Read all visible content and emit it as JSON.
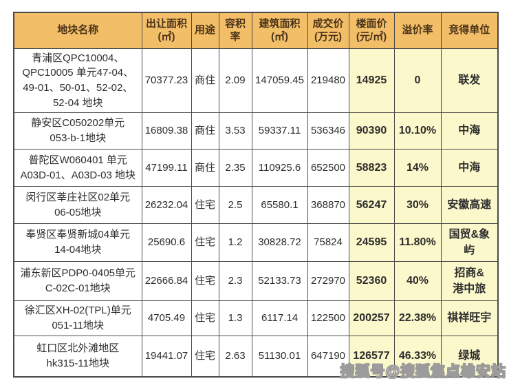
{
  "watermark": "搜狐号@搜狐焦点雄安站",
  "colors": {
    "header_bg": "#f3be68",
    "highlight_bg": "#fbf8cb",
    "border": "#4a4a4a",
    "header_text": "#4a3318",
    "body_text": "#2d2d2d",
    "watermark_fill": "#fbfbfb",
    "watermark_outline": "#9b9b9b"
  },
  "chart_data": {
    "type": "table",
    "title": "",
    "columns": [
      {
        "key": "parcel-name",
        "label": "地块名称"
      },
      {
        "key": "transfer-area",
        "label": "出让面积\n(㎡)"
      },
      {
        "key": "usage",
        "label": "用途"
      },
      {
        "key": "plot-ratio",
        "label": "容积率"
      },
      {
        "key": "building-area",
        "label": "建筑面积\n(㎡)"
      },
      {
        "key": "transaction-price",
        "label": "成交价\n(万元)"
      },
      {
        "key": "floor-price",
        "label": "楼面价\n(元/㎡)"
      },
      {
        "key": "premium-rate",
        "label": "溢价率"
      },
      {
        "key": "winning-bidder",
        "label": "竞得单位"
      }
    ],
    "highlight_column_keys": [
      "floor-price",
      "premium-rate",
      "winning-bidder"
    ],
    "rows": [
      [
        "青浦区QPC10004、\nQPC10005 单元47-04、\n49-01、50-01、52-02、\n52-04 地块",
        "70377.23",
        "商住",
        "2.09",
        "147059.45",
        "219480",
        "14925",
        "0",
        "联发"
      ],
      [
        "静安区C050202单元\n053-b-1地块",
        "16809.38",
        "商住",
        "3.53",
        "59337.11",
        "536346",
        "90390",
        "10.10%",
        "中海"
      ],
      [
        "普陀区W060401 单元\nA03D-01、A03D-03 地块",
        "47199.11",
        "商住",
        "2.35",
        "110925.6",
        "652500",
        "58823",
        "14%",
        "中海"
      ],
      [
        "闵行区莘庄社区02单元\n06-05地块",
        "26232.04",
        "住宅",
        "2.5",
        "65580.1",
        "368870",
        "56247",
        "30%",
        "安徽高速"
      ],
      [
        "奉贤区奉贤新城04单元\n14-04地块",
        "25690.6",
        "住宅",
        "1.2",
        "30828.72",
        "75824",
        "24595",
        "11.80%",
        "国贸&象屿"
      ],
      [
        "浦东新区PDP0-0405单元\nC-02C-01地块",
        "22666.84",
        "住宅",
        "2.3",
        "52133.73",
        "272970",
        "52360",
        "40%",
        "招商&\n港中旅"
      ],
      [
        "徐汇区XH-02(TPL)单元\n051-11地块",
        "4705.49",
        "住宅",
        "1.3",
        "6117.14",
        "122500",
        "200257",
        "22.38%",
        "祺祥旺宇"
      ],
      [
        "虹口区北外滩地区\nhk315-11地块",
        "19441.07",
        "住宅",
        "2.63",
        "51130.01",
        "647190",
        "126577",
        "46.33%",
        "绿城"
      ]
    ]
  }
}
